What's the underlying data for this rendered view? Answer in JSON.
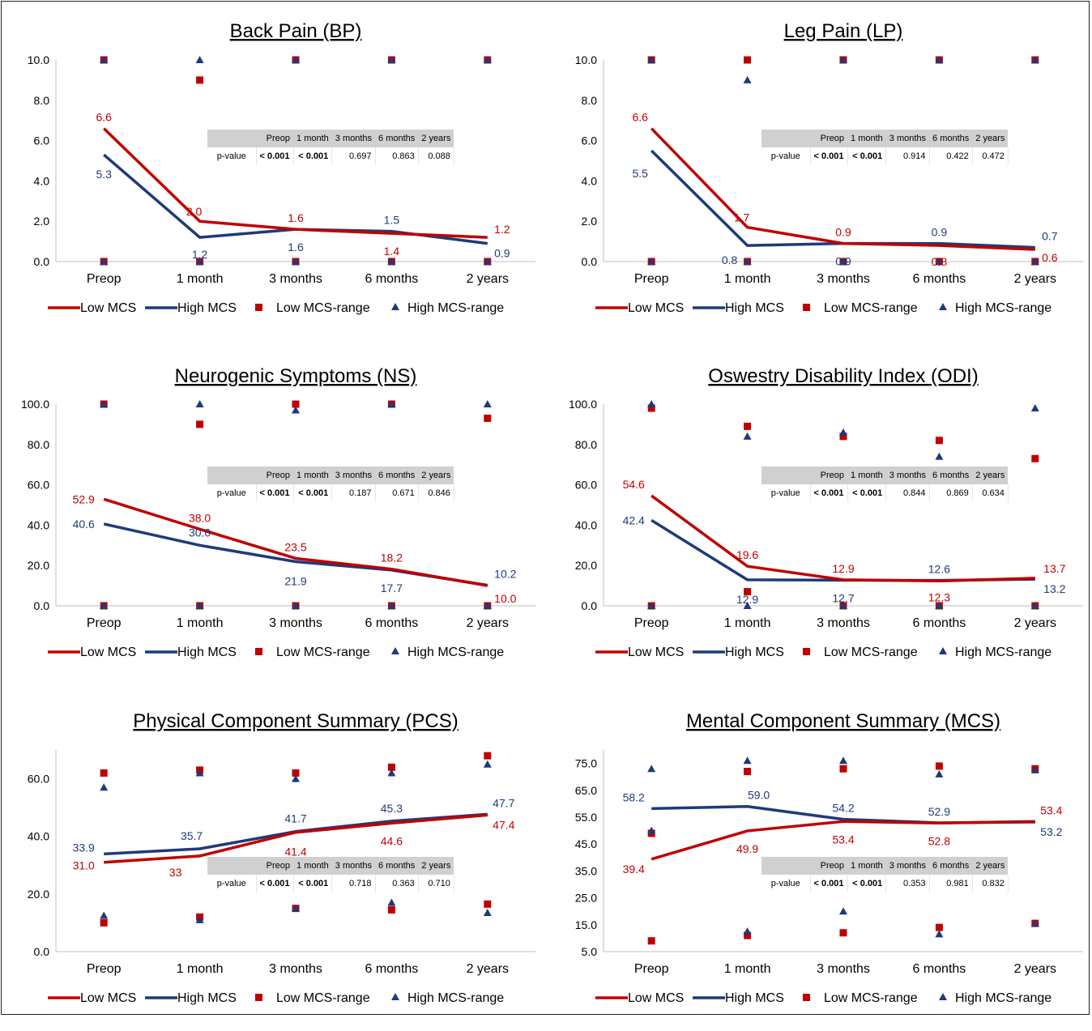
{
  "legend": {
    "low": "Low MCS",
    "high": "High MCS",
    "low_range": "Low MCS-range",
    "high_range": "High MCS-range"
  },
  "colors": {
    "low": "#c00000",
    "high": "#1f3a7a",
    "axis": "#bfbfbf",
    "table_header": "#d0d0d0"
  },
  "table_header": [
    "Preop",
    "1 month",
    "3 months",
    "6 months",
    "2 years"
  ],
  "table_row_label": "p-value",
  "chart_data": [
    {
      "type": "line",
      "title": "Back Pain (BP)",
      "categories": [
        "Preop",
        "1 month",
        "3 months",
        "6 months",
        "2 years"
      ],
      "ylim": [
        0,
        10
      ],
      "yticks": [
        "0.0",
        "2.0",
        "4.0",
        "6.0",
        "8.0",
        "10.0"
      ],
      "series": [
        {
          "name": "Low MCS",
          "values": [
            6.6,
            2.0,
            1.6,
            1.4,
            1.2
          ],
          "labels": [
            "6.6",
            "2.0",
            "1.6",
            "1.4",
            "1.2"
          ]
        },
        {
          "name": "High MCS",
          "values": [
            5.3,
            1.2,
            1.6,
            1.5,
            0.9
          ],
          "labels": [
            "5.3",
            "1.2",
            "1.6",
            "1.5",
            "0.9"
          ]
        }
      ],
      "range_markers": {
        "low": [
          [
            0,
            10
          ],
          [
            0,
            9
          ],
          [
            0,
            10
          ],
          [
            0,
            10
          ],
          [
            0,
            10
          ]
        ],
        "high": [
          [
            0,
            10
          ],
          [
            0,
            10
          ],
          [
            0,
            10
          ],
          [
            0,
            10
          ],
          [
            0,
            10
          ]
        ]
      },
      "pvalues": [
        "< 0.001",
        "< 0.001",
        "0.697",
        "0.863",
        "0.088"
      ]
    },
    {
      "type": "line",
      "title": "Leg Pain (LP)",
      "categories": [
        "Preop",
        "1 month",
        "3 months",
        "6 months",
        "2 years"
      ],
      "ylim": [
        0,
        10
      ],
      "yticks": [
        "0.0",
        "2.0",
        "4.0",
        "6.0",
        "8.0",
        "10.0"
      ],
      "series": [
        {
          "name": "Low MCS",
          "values": [
            6.6,
            1.7,
            0.9,
            0.8,
            0.6
          ],
          "labels": [
            "6.6",
            "1.7",
            "0.9",
            "0.8",
            "0.6"
          ]
        },
        {
          "name": "High MCS",
          "values": [
            5.5,
            0.8,
            0.9,
            0.9,
            0.7
          ],
          "labels": [
            "5.5",
            "0.8",
            "0.9",
            "0.9",
            "0.7"
          ]
        }
      ],
      "range_markers": {
        "low": [
          [
            0,
            10
          ],
          [
            0,
            10
          ],
          [
            0,
            10
          ],
          [
            0,
            10
          ],
          [
            0,
            10
          ]
        ],
        "high": [
          [
            0,
            10
          ],
          [
            0,
            9
          ],
          [
            0,
            10
          ],
          [
            0,
            10
          ],
          [
            0,
            10
          ]
        ]
      },
      "pvalues": [
        "< 0.001",
        "< 0.001",
        "0.914",
        "0.422",
        "0.472"
      ]
    },
    {
      "type": "line",
      "title": "Neurogenic Symptoms (NS)",
      "categories": [
        "Preop",
        "1 month",
        "3 months",
        "6 months",
        "2 years"
      ],
      "ylim": [
        0,
        100
      ],
      "yticks": [
        "0.0",
        "20.0",
        "40.0",
        "60.0",
        "80.0",
        "100.0"
      ],
      "series": [
        {
          "name": "Low MCS",
          "values": [
            52.9,
            38.0,
            23.5,
            18.2,
            10.0
          ],
          "labels": [
            "52.9",
            "38.0",
            "23.5",
            "18.2",
            "10.0"
          ]
        },
        {
          "name": "High MCS",
          "values": [
            40.6,
            30.0,
            21.9,
            17.7,
            10.2
          ],
          "labels": [
            "40.6",
            "30.0",
            "21.9",
            "17.7",
            "10.2"
          ]
        }
      ],
      "range_markers": {
        "low": [
          [
            0,
            100
          ],
          [
            0,
            90
          ],
          [
            0,
            100
          ],
          [
            0,
            100
          ],
          [
            0,
            93
          ]
        ],
        "high": [
          [
            0,
            100
          ],
          [
            0,
            100
          ],
          [
            0,
            97
          ],
          [
            0,
            100
          ],
          [
            0,
            100
          ]
        ]
      },
      "pvalues": [
        "< 0.001",
        "< 0.001",
        "0.187",
        "0.671",
        "0.846"
      ]
    },
    {
      "type": "line",
      "title": "Oswestry Disability Index (ODI)",
      "categories": [
        "Preop",
        "1 month",
        "3 months",
        "6 months",
        "2 years"
      ],
      "ylim": [
        0,
        100
      ],
      "yticks": [
        "0.0",
        "20.0",
        "40.0",
        "60.0",
        "80.0",
        "100.0"
      ],
      "series": [
        {
          "name": "Low MCS",
          "values": [
            54.6,
            19.6,
            12.9,
            12.3,
            13.7
          ],
          "labels": [
            "54.6",
            "19.6",
            "12.9",
            "12.3",
            "13.7"
          ]
        },
        {
          "name": "High MCS",
          "values": [
            42.4,
            12.9,
            12.7,
            12.6,
            13.2
          ],
          "labels": [
            "42.4",
            "12.9",
            "12.7",
            "12.6",
            "13.2"
          ]
        }
      ],
      "range_markers": {
        "low": [
          [
            0,
            98
          ],
          [
            7,
            89
          ],
          [
            0,
            84
          ],
          [
            0,
            82
          ],
          [
            0,
            73
          ]
        ],
        "high": [
          [
            0,
            100
          ],
          [
            0,
            84
          ],
          [
            0,
            86
          ],
          [
            0,
            74
          ],
          [
            0,
            98
          ]
        ]
      },
      "pvalues": [
        "< 0.001",
        "< 0.001",
        "0.844",
        "0.869",
        "0.634"
      ]
    },
    {
      "type": "line",
      "title": "Physical Component Summary (PCS)",
      "categories": [
        "Preop",
        "1 month",
        "3 months",
        "6 months",
        "2 years"
      ],
      "ylim": [
        0,
        70
      ],
      "yticks": [
        "0.0",
        "20.0",
        "40.0",
        "60.0"
      ],
      "ytick_values": [
        0,
        20,
        40,
        60
      ],
      "series": [
        {
          "name": "Low MCS",
          "values": [
            31.0,
            33.2,
            41.4,
            44.6,
            47.4
          ],
          "labels": [
            "31.0",
            "33",
            "41.4",
            "44.6",
            "47.4"
          ]
        },
        {
          "name": "High MCS",
          "values": [
            33.9,
            35.7,
            41.7,
            45.3,
            47.7
          ],
          "labels": [
            "33.9",
            "35.7",
            "41.7",
            "45.3",
            "47.7"
          ]
        }
      ],
      "range_markers": {
        "low": [
          [
            10,
            62
          ],
          [
            12,
            63
          ],
          [
            15,
            62
          ],
          [
            14.5,
            64
          ],
          [
            16.5,
            68
          ]
        ],
        "high": [
          [
            12.5,
            57
          ],
          [
            11,
            62
          ],
          [
            15,
            60
          ],
          [
            17,
            62
          ],
          [
            13.5,
            65
          ]
        ]
      },
      "pvalues": [
        "< 0.001",
        "< 0.001",
        "0.718",
        "0.363",
        "0.710"
      ]
    },
    {
      "type": "line",
      "title": "Mental Component Summary (MCS)",
      "categories": [
        "Preop",
        "1 month",
        "3 months",
        "6 months",
        "2 years"
      ],
      "ylim": [
        5,
        80
      ],
      "yticks": [
        "5.0",
        "15.0",
        "25.0",
        "35.0",
        "45.0",
        "55.0",
        "65.0",
        "75.0"
      ],
      "ytick_values": [
        5,
        15,
        25,
        35,
        45,
        55,
        65,
        75
      ],
      "series": [
        {
          "name": "Low MCS",
          "values": [
            39.4,
            49.9,
            53.4,
            52.8,
            53.4
          ],
          "labels": [
            "39.4",
            "49.9",
            "53.4",
            "52.8",
            "53.4"
          ]
        },
        {
          "name": "High MCS",
          "values": [
            58.2,
            59.0,
            54.2,
            52.9,
            53.2
          ],
          "labels": [
            "58.2",
            "59.0",
            "54.2",
            "52.9",
            "53.2"
          ]
        }
      ],
      "range_markers": {
        "low": [
          [
            9,
            49
          ],
          [
            11,
            72
          ],
          [
            12,
            73
          ],
          [
            14,
            74
          ],
          [
            15.5,
            73
          ]
        ],
        "high": [
          [
            50,
            73
          ],
          [
            12.5,
            76
          ],
          [
            20,
            76
          ],
          [
            11.5,
            71
          ],
          [
            15.5,
            72.5
          ]
        ]
      },
      "pvalues": [
        "< 0.001",
        "< 0.001",
        "0.353",
        "0.981",
        "0.832"
      ]
    }
  ]
}
